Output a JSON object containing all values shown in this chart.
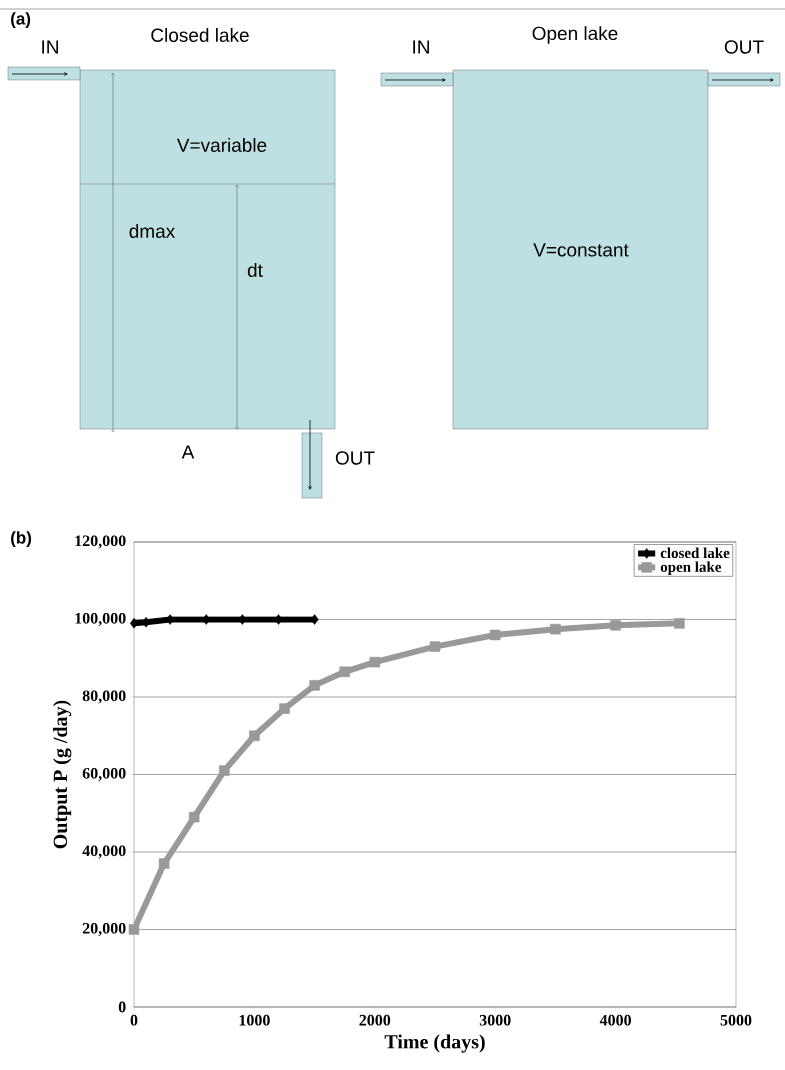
{
  "chart_data": [
    {
      "type": "other",
      "title": "(a)",
      "annotations": [
        "IN",
        "Closed lake",
        "V=variable",
        "dmax",
        "dt",
        "A",
        "OUT",
        "IN",
        "Open lake",
        "OUT",
        "V=constant"
      ]
    },
    {
      "type": "line",
      "title": "(b)",
      "xlabel": "Time (days)",
      "ylabel": "Output P (g /day)",
      "xlim": [
        0,
        5000
      ],
      "ylim": [
        0,
        120000
      ],
      "xticks": [
        0,
        1000,
        2000,
        3000,
        4000,
        5000
      ],
      "yticks": [
        0,
        {
          "value": 20000,
          "label": "20,000"
        },
        {
          "value": 40000,
          "label": "40,000"
        },
        {
          "value": 60000,
          "label": "60,000"
        },
        {
          "value": 80000,
          "label": "80,000"
        },
        {
          "value": 100000,
          "label": "100,000"
        },
        {
          "value": 120000,
          "label": "120,000"
        }
      ],
      "grid": "y",
      "legend": "top right",
      "line_style": "solid",
      "series": [
        {
          "name": "closed lake",
          "color": "#000000",
          "marker": "diamond",
          "x": [
            0,
            100,
            300,
            600,
            900,
            1200,
            1500
          ],
          "values": [
            99000,
            99300,
            100000,
            100000,
            100000,
            100000,
            100000
          ]
        },
        {
          "name": "open lake",
          "color": "#999999",
          "marker": "square",
          "x": [
            0,
            250,
            500,
            750,
            1000,
            1250,
            1500,
            1750,
            2000,
            2500,
            3000,
            3500,
            4000,
            4530
          ],
          "values": [
            20000,
            37000,
            49000,
            61000,
            70000,
            77000,
            83000,
            86500,
            89000,
            93000,
            96000,
            97500,
            98500,
            99000
          ]
        }
      ]
    }
  ]
}
